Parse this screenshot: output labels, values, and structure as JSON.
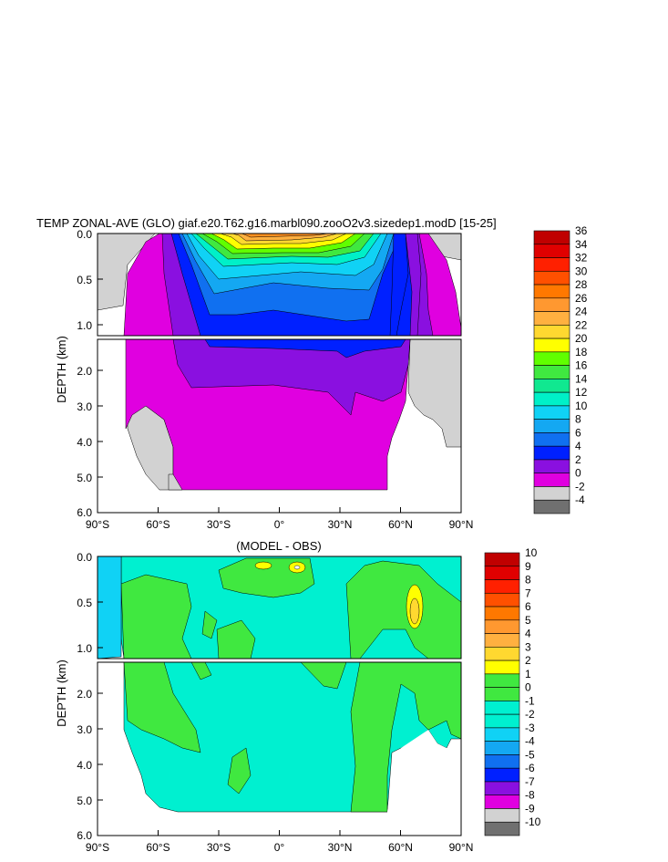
{
  "colors": {
    "land": "#d2d2d2",
    "lands_dark": "#707070",
    "magenta": "#e000e0",
    "purple": "#8a10e0",
    "blue": "#0020ff",
    "blue_med": "#1070f0",
    "sky": "#14a8f2",
    "cyan": "#10d2f5",
    "cyan_light": "#00f0e0",
    "aqua": "#00f0c8",
    "green_aqua": "#10e890",
    "green": "#40e840",
    "green_bright": "#60ff00",
    "yellow": "#ffff00",
    "gold": "#ffd830",
    "orange_light": "#ffb040",
    "orange": "#ff9020",
    "orange_dark": "#ff7000",
    "red_orange": "#ff3000",
    "red": "#f00000",
    "dark_red": "#c00000"
  },
  "chart_data": [
    {
      "type": "heatmap",
      "title": "TEMP ZONAL-AVE (GLO) giaf.e20.T62.g16.marbl090.zooO2v3.sizedep1.modD [15-25]",
      "xlabel": "",
      "ylabel": "DEPTH (km)",
      "x_tick_labels": [
        "90°S",
        "60°S",
        "30°S",
        "0°",
        "30°N",
        "60°N",
        "90°N"
      ],
      "x_range": [
        -90,
        90
      ],
      "upper_y_tick_labels": [
        "0.0",
        "0.5",
        "1.0"
      ],
      "lower_y_tick_labels": [
        "2.0",
        "3.0",
        "4.0",
        "5.0",
        "6.0"
      ],
      "y_range_km": [
        0,
        6
      ],
      "colorbar_labels": [
        "36",
        "34",
        "32",
        "30",
        "28",
        "26",
        "24",
        "22",
        "20",
        "18",
        "16",
        "14",
        "12",
        "10",
        "8",
        "6",
        "4",
        "2",
        "0",
        "-2",
        "-4"
      ],
      "colorbar_colors": [
        "#c00000",
        "#e00000",
        "#ff2000",
        "#ff5000",
        "#ff7800",
        "#ff9830",
        "#ffb040",
        "#ffd830",
        "#ffff00",
        "#60ff00",
        "#40e840",
        "#10e890",
        "#00f0c8",
        "#10d2f5",
        "#14a8f2",
        "#1070f0",
        "#0020ff",
        "#8a10e0",
        "#e000e0",
        "#d2d2d2",
        "#707070"
      ]
    },
    {
      "type": "heatmap",
      "title": "(MODEL - OBS)",
      "xlabel": "",
      "ylabel": "DEPTH (km)",
      "x_tick_labels": [
        "90°S",
        "60°S",
        "30°S",
        "0°",
        "30°N",
        "60°N",
        "90°N"
      ],
      "x_range": [
        -90,
        90
      ],
      "upper_y_tick_labels": [
        "0.0",
        "0.5",
        "1.0"
      ],
      "lower_y_tick_labels": [
        "2.0",
        "3.0",
        "4.0",
        "5.0",
        "6.0"
      ],
      "y_range_km": [
        0,
        6
      ],
      "colorbar_labels": [
        "10",
        "9",
        "8",
        "7",
        "6",
        "5",
        "4",
        "3",
        "2",
        "1",
        "0",
        "-1",
        "-2",
        "-3",
        "-4",
        "-5",
        "-6",
        "-7",
        "-8",
        "-9",
        "-10"
      ],
      "colorbar_colors": [
        "#c00000",
        "#e00000",
        "#ff2000",
        "#ff5000",
        "#ff7800",
        "#ff9830",
        "#ffb040",
        "#ffd830",
        "#ffff00",
        "#40e840",
        "#40e840",
        "#00f0d0",
        "#00f0d0",
        "#10d2f5",
        "#14a8f2",
        "#1070f0",
        "#0020ff",
        "#8a10e0",
        "#e000e0",
        "#d2d2d2",
        "#707070"
      ]
    }
  ]
}
